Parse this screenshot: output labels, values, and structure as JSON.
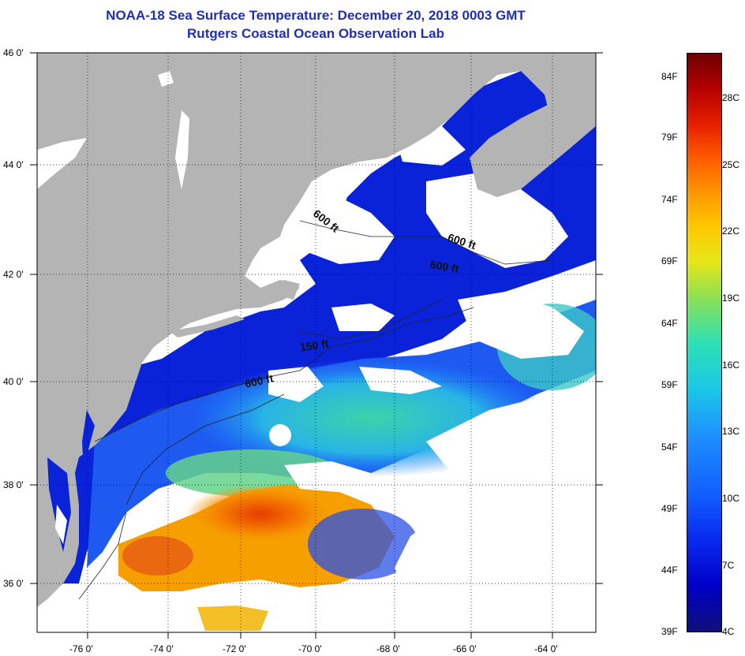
{
  "title": "NOAA-18 Sea Surface Temperature:  December 20, 2018 0003 GMT",
  "subtitle": "Rutgers Coastal Ocean Observation Lab",
  "y_axis_labels": [
    "46 0'",
    "44 0'",
    "42 0'",
    "40 0'",
    "38 0'",
    "36 0'"
  ],
  "x_axis_labels": [
    "-76 0'",
    "-74 0'",
    "-72 0'",
    "-70 0'",
    "-68 0'",
    "-66 0'",
    "-64 0'"
  ],
  "contour_labels": [
    "600 ft",
    "600 ft",
    "600 ft",
    "150 ft",
    "600 ft"
  ],
  "colorbar": {
    "fahrenheit": [
      "84F",
      "79F",
      "74F",
      "69F",
      "64F",
      "59F",
      "54F",
      "49F",
      "44F",
      "39F"
    ],
    "celsius": [
      "28C",
      "25C",
      "22C",
      "19C",
      "16C",
      "13C",
      "10C",
      "7C",
      "4C"
    ]
  },
  "colors": {
    "title": "#1f2fb0",
    "land": "#b4b4b4",
    "cloud": "#ffffff",
    "cold_water": "#0a22d8",
    "warm_water": "#f07800"
  }
}
